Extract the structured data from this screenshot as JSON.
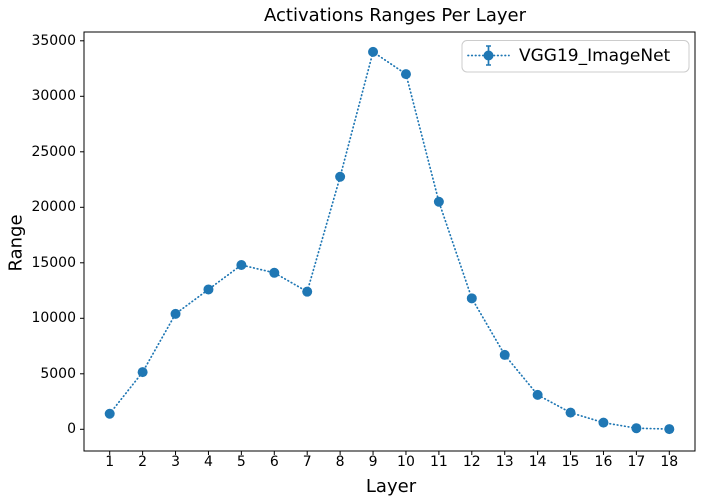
{
  "chart_data": {
    "type": "line",
    "title": "Activations Ranges Per Layer",
    "xlabel": "Layer",
    "ylabel": "Range",
    "categories": [
      1,
      2,
      3,
      4,
      5,
      6,
      7,
      8,
      9,
      10,
      11,
      12,
      13,
      14,
      15,
      16,
      17,
      18
    ],
    "series": [
      {
        "name": "VGG19_ImageNet",
        "color": "#1f77b4",
        "linestyle": "dotted",
        "marker": "circle-errorbar",
        "values": [
          1400,
          5150,
          10400,
          12600,
          14800,
          14100,
          12400,
          22750,
          34000,
          32000,
          20500,
          11800,
          6700,
          3100,
          1500,
          600,
          100,
          20
        ]
      }
    ],
    "yticks": [
      0,
      5000,
      10000,
      15000,
      20000,
      25000,
      30000,
      35000
    ],
    "ylim": [
      -1900,
      35800
    ],
    "xlim": [
      0.2,
      18.8
    ],
    "grid": false,
    "legend_position": "upper right",
    "background_color": "#ffffff",
    "spine_color": "#000000",
    "legend_border_color": "#cccccc"
  }
}
